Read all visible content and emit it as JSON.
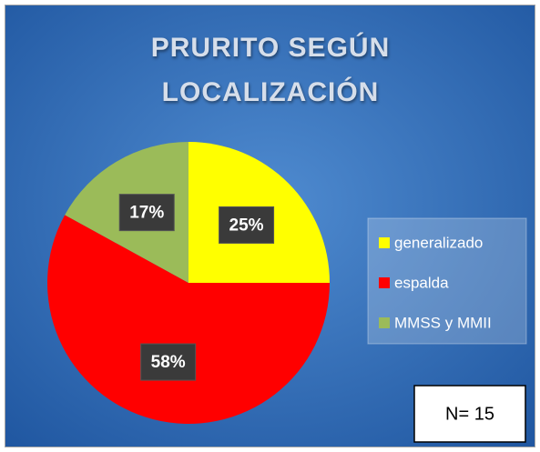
{
  "chart_data": {
    "type": "pie",
    "title": "PRURITO SEGÚN LOCALIZACIÓN",
    "categories": [
      "generalizado",
      "espalda",
      "MMSS y MMII"
    ],
    "values": [
      25,
      58,
      17
    ],
    "value_labels": [
      "25%",
      "58%",
      "17%"
    ],
    "colors": [
      "#ffff00",
      "#ff0000",
      "#9bbb59"
    ],
    "annotation": "N= 15",
    "legend": "right"
  }
}
